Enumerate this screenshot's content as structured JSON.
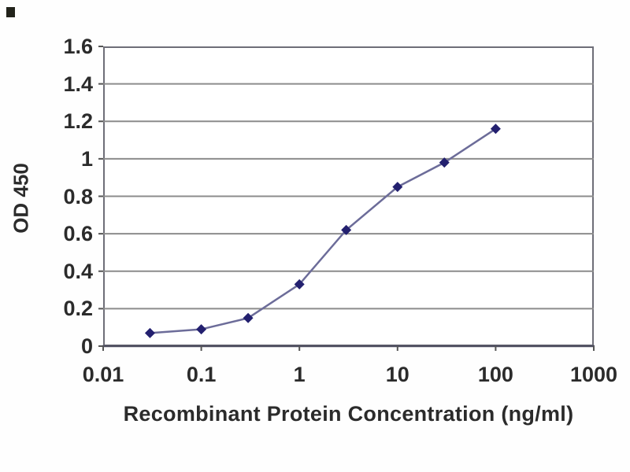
{
  "page": {
    "background_color": "#fefefe",
    "corner_mark_color": "#22231b"
  },
  "chart_data": {
    "type": "line",
    "title": "",
    "xlabel": "Recombinant Protein Concentration (ng/ml)",
    "ylabel": "OD 450",
    "x_scale": "log",
    "y_scale": "linear",
    "xlim": [
      0.01,
      1000
    ],
    "ylim": [
      0,
      1.6
    ],
    "x_ticks": [
      0.01,
      0.1,
      1,
      10,
      100,
      1000
    ],
    "x_tick_labels": [
      "0.01",
      "0.1",
      "1",
      "10",
      "100",
      "1000"
    ],
    "y_ticks": [
      0,
      0.2,
      0.4,
      0.6,
      0.8,
      1,
      1.2,
      1.4,
      1.6
    ],
    "y_tick_labels": [
      "0",
      "0.2",
      "0.4",
      "0.6",
      "0.8",
      "1",
      "1.2",
      "1.4",
      "1.6"
    ],
    "grid": "horizontal",
    "legend": "none",
    "series": [
      {
        "name": "OD 450",
        "marker": "diamond",
        "x": [
          0.03,
          0.1,
          0.3,
          1,
          3,
          10,
          30,
          100
        ],
        "y": [
          0.07,
          0.09,
          0.15,
          0.33,
          0.62,
          0.85,
          0.98,
          1.16
        ]
      }
    ],
    "colors": {
      "marker": "#23206f",
      "line": "#6c6c99",
      "gridline": "#8c8c8c",
      "plot_border": "#6e6e78",
      "axis_line": "#4d4d5e",
      "tick": "#555555",
      "text": "#2b2b2b"
    }
  }
}
